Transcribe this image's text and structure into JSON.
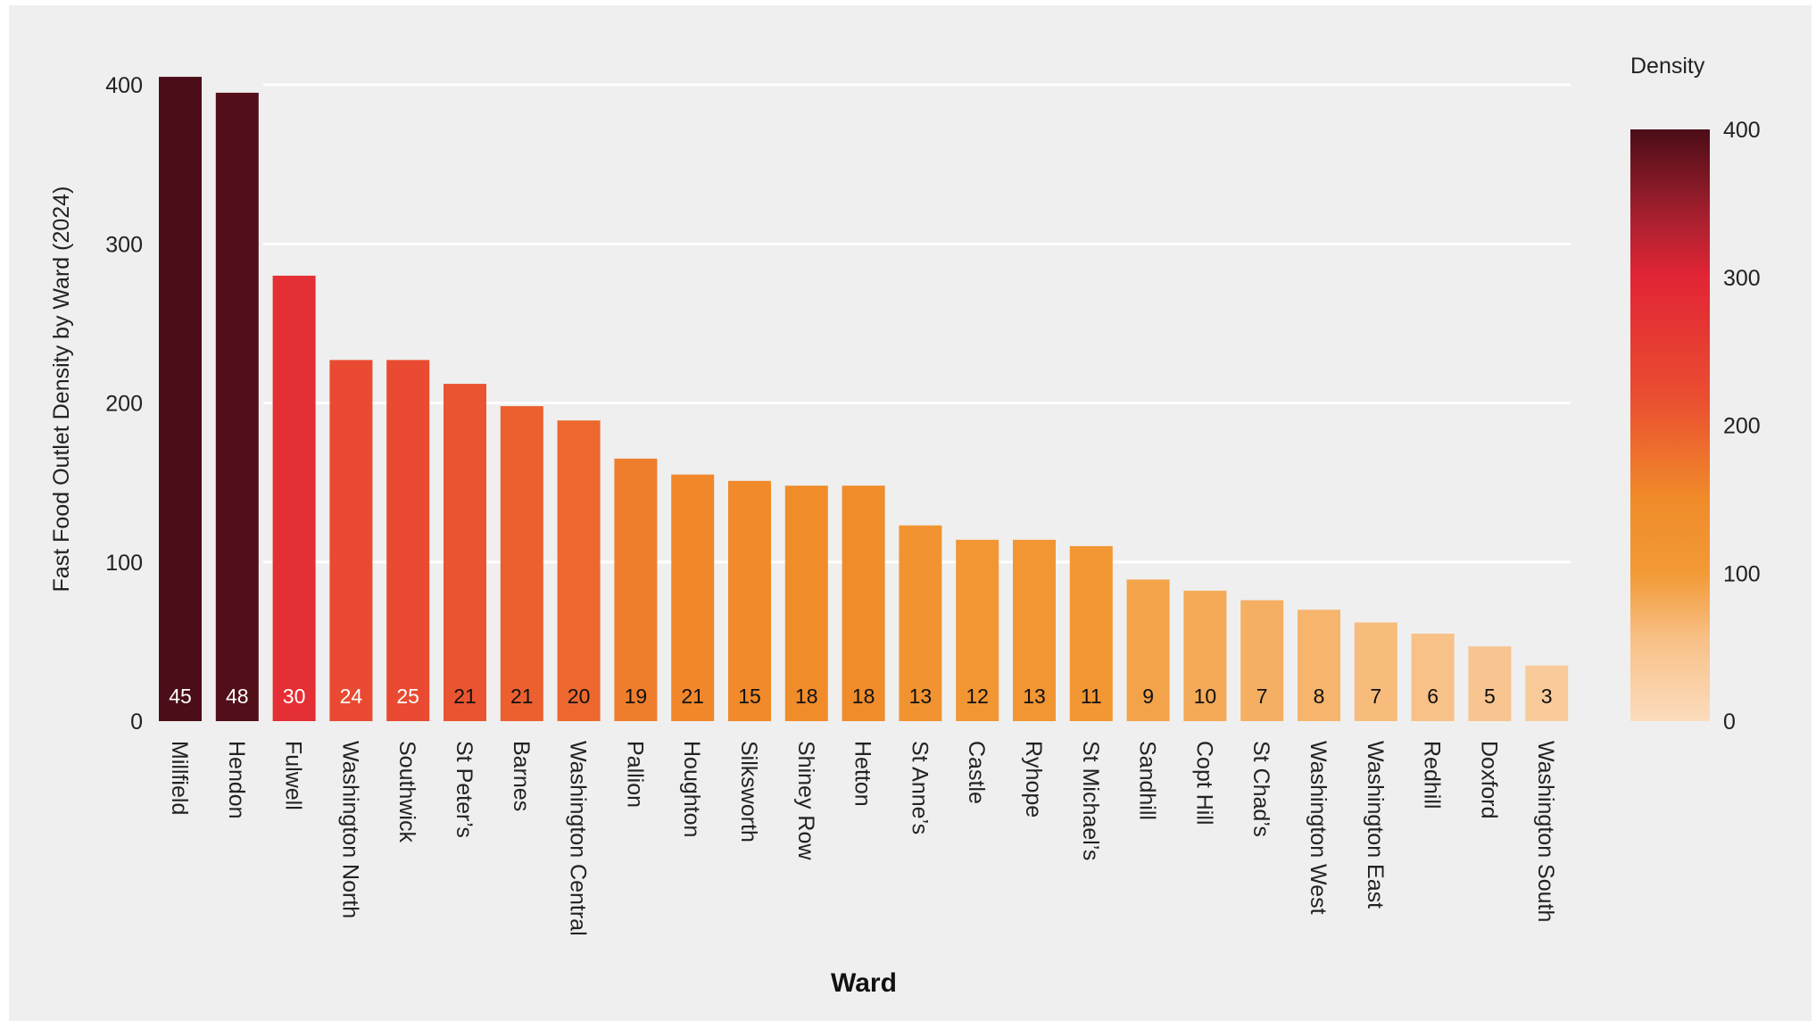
{
  "chart_data": {
    "type": "bar",
    "xlabel": "Ward",
    "ylabel": "Fast Food Outlet Density by Ward (2024)",
    "ylim": [
      0,
      400
    ],
    "yticks": [
      0,
      100,
      200,
      300,
      400
    ],
    "grid": true,
    "categories": [
      "Millfield",
      "Hendon",
      "Fulwell",
      "Washington North",
      "Southwick",
      "St Peter’s",
      "Barnes",
      "Washington Central",
      "Pallion",
      "Houghton",
      "Silksworth",
      "Shiney Row",
      "Hetton",
      "St Anne’s",
      "Castle",
      "Ryhope",
      "St Michael’s",
      "Sandhill",
      "Copt Hill",
      "St Chad’s",
      "Washington West",
      "Washington East",
      "Redhill",
      "Doxford",
      "Washington South"
    ],
    "values": [
      405,
      395,
      280,
      227,
      227,
      212,
      198,
      189,
      165,
      155,
      151,
      148,
      148,
      123,
      114,
      114,
      110,
      89,
      82,
      76,
      70,
      62,
      55,
      47,
      35
    ],
    "bar_labels": [
      "45",
      "48",
      "30",
      "24",
      "25",
      "21",
      "21",
      "20",
      "19",
      "21",
      "15",
      "18",
      "18",
      "13",
      "12",
      "13",
      "11",
      "9",
      "10",
      "7",
      "8",
      "7",
      "6",
      "5",
      "3"
    ],
    "legend": {
      "title": "Density",
      "placement": "right",
      "ticks": [
        0,
        100,
        200,
        300,
        400
      ],
      "range": [
        0,
        400
      ]
    },
    "colorscale": [
      {
        "value": 0,
        "color": "#fbdcbd"
      },
      {
        "value": 55,
        "color": "#f8c188"
      },
      {
        "value": 100,
        "color": "#f29a36"
      },
      {
        "value": 150,
        "color": "#f08b2a"
      },
      {
        "value": 220,
        "color": "#ea4d31"
      },
      {
        "value": 300,
        "color": "#e22535"
      },
      {
        "value": 340,
        "color": "#a8202f"
      },
      {
        "value": 400,
        "color": "#4b0d17"
      }
    ],
    "colors": {
      "background": "#efefef",
      "grid": "#ffffff",
      "label_dark": "#111111",
      "label_light": "#ffffff"
    }
  }
}
